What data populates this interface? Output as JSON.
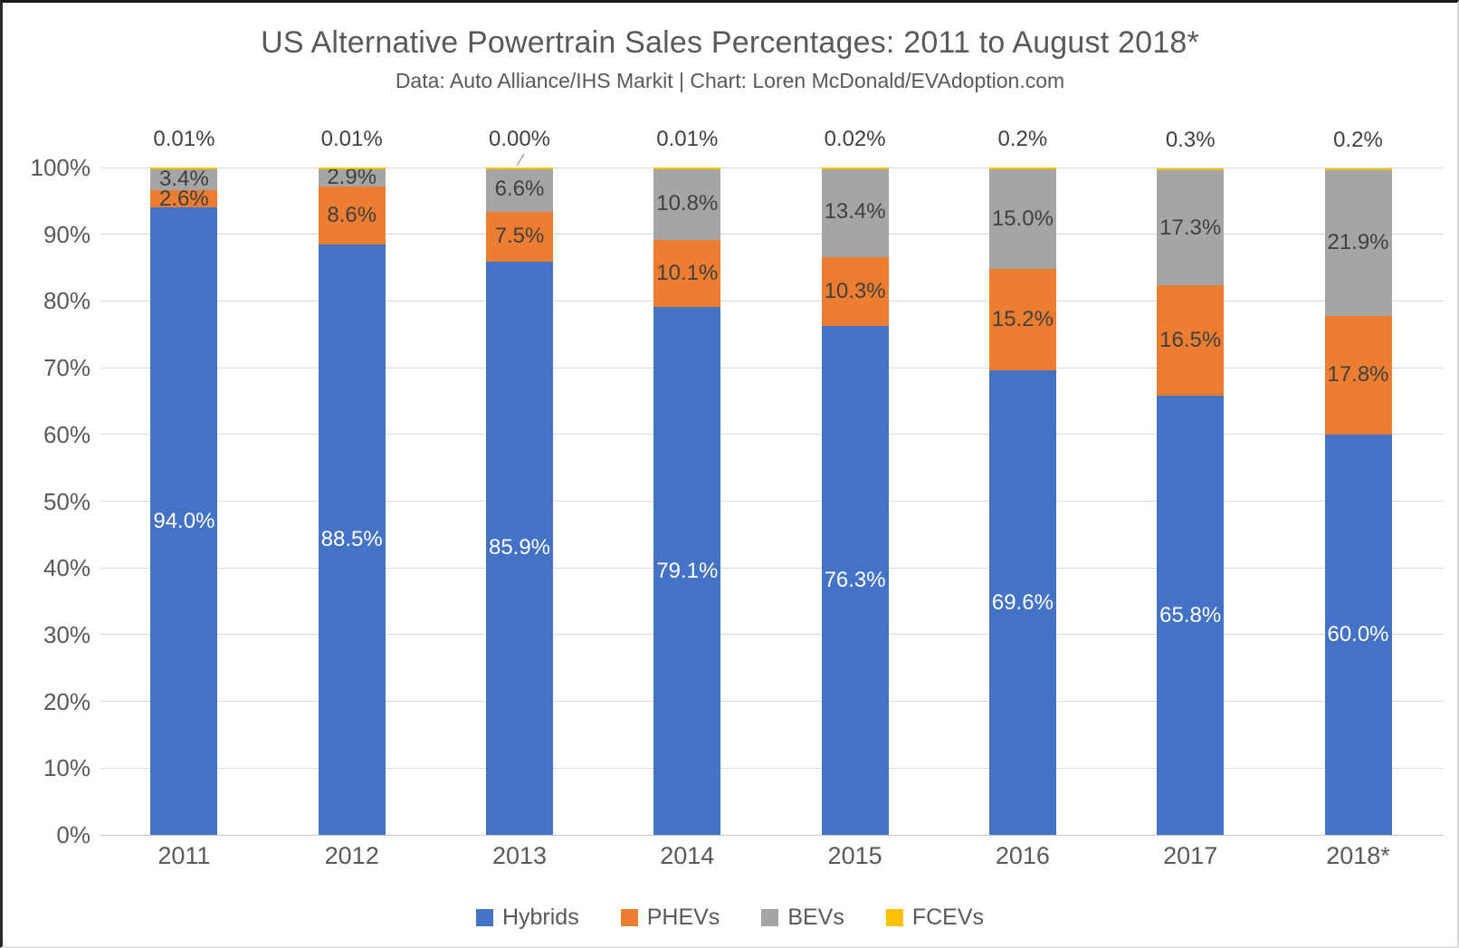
{
  "chart_data": {
    "type": "bar",
    "stacked": true,
    "stack_total": 100,
    "title": "US Alternative Powertrain Sales Percentages: 2011 to August 2018*",
    "subtitle": "Data: Auto Alliance/IHS Markit | Chart: Loren McDonald/EVAdoption.com",
    "categories": [
      "2011",
      "2012",
      "2013",
      "2014",
      "2015",
      "2016",
      "2017",
      "2018*"
    ],
    "series": [
      {
        "name": "Hybrids",
        "color": "#4472C4",
        "label_color": "#FFFFFF",
        "values": [
          94.0,
          88.5,
          85.9,
          79.1,
          76.3,
          69.6,
          65.8,
          60.0
        ],
        "labels": [
          "94.0%",
          "88.5%",
          "85.9%",
          "79.1%",
          "76.3%",
          "69.6%",
          "65.8%",
          "60.0%"
        ]
      },
      {
        "name": "PHEVs",
        "color": "#ED7D31",
        "label_color": "#404040",
        "values": [
          2.6,
          8.6,
          7.5,
          10.1,
          10.3,
          15.2,
          16.5,
          17.8
        ],
        "labels": [
          "2.6%",
          "8.6%",
          "7.5%",
          "10.1%",
          "10.3%",
          "15.2%",
          "16.5%",
          "17.8%"
        ]
      },
      {
        "name": "BEVs",
        "color": "#A5A5A5",
        "label_color": "#404040",
        "values": [
          3.4,
          2.9,
          6.6,
          10.8,
          13.4,
          15.0,
          17.3,
          21.9
        ],
        "labels": [
          "3.4%",
          "2.9%",
          "6.6%",
          "10.8%",
          "13.4%",
          "15.0%",
          "17.3%",
          "21.9%"
        ]
      },
      {
        "name": "FCEVs",
        "color": "#FFC000",
        "label_color": "#404040",
        "labels_position": "above",
        "leader_line_category_index": 2,
        "values": [
          0.01,
          0.01,
          0.0,
          0.01,
          0.02,
          0.2,
          0.3,
          0.2
        ],
        "labels": [
          "0.01%",
          "0.01%",
          "0.00%",
          "0.01%",
          "0.02%",
          "0.2%",
          "0.3%",
          "0.2%"
        ]
      }
    ],
    "xlabel": "",
    "ylabel": "",
    "ylim": [
      0,
      100
    ],
    "ytick_labels": [
      "0%",
      "10%",
      "20%",
      "30%",
      "40%",
      "50%",
      "60%",
      "70%",
      "80%",
      "90%",
      "100%"
    ],
    "grid": true,
    "legend": {
      "position": "bottom",
      "entries": [
        "Hybrids",
        "PHEVs",
        "BEVs",
        "FCEVs"
      ]
    }
  },
  "colors": {
    "axis_text": "#595959",
    "title_text": "#595959",
    "data_label": "#404040",
    "gridline": "#D9D9D9",
    "baseline": "#C6C6C6",
    "leader_line": "#A6A6A6",
    "background": "#FFFFFF"
  }
}
